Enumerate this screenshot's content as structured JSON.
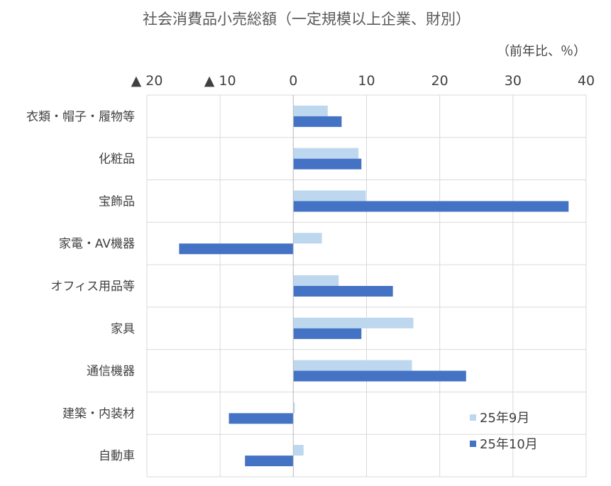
{
  "chart_data": {
    "type": "bar",
    "orientation": "horizontal",
    "title": "社会消費品小売総額（一定規模以上企業、財別）",
    "unit_label": "（前年比、％）",
    "categories": [
      "衣類・帽子・履物等",
      "化粧品",
      "宝飾品",
      "家電・AV機器",
      "オフィス用品等",
      "家具",
      "通信機器",
      "建築・内装材",
      "自動車"
    ],
    "series": [
      {
        "name": "25年9月",
        "color": "#bdd7ee",
        "values": [
          4.7,
          8.9,
          9.9,
          3.9,
          6.2,
          16.4,
          16.2,
          0.2,
          1.4
        ]
      },
      {
        "name": "25年10月",
        "color": "#4472c4",
        "values": [
          6.6,
          9.3,
          37.6,
          -15.6,
          13.6,
          9.3,
          23.6,
          -8.8,
          -6.6
        ]
      }
    ],
    "xlim": [
      -20,
      40
    ],
    "xticks": [
      -20,
      -10,
      0,
      10,
      20,
      30,
      40
    ],
    "xtick_labels": [
      "▲ 20",
      "▲ 10",
      "0",
      "10",
      "20",
      "30",
      "40"
    ],
    "grid": true,
    "legend_position": "bottom-right"
  }
}
